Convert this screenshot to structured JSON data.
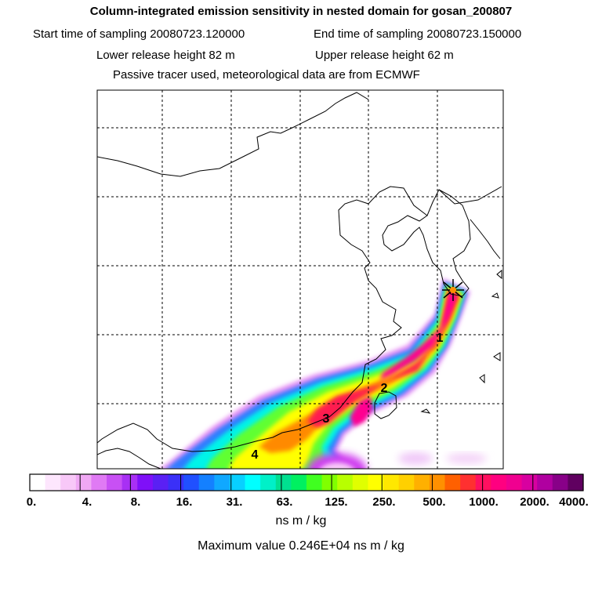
{
  "header": {
    "title": "Column-integrated emission sensitivity in nested domain for gosan_200807",
    "start_label": "Start time of sampling 20080723.120000",
    "end_label": "End time of sampling 20080723.150000",
    "lower_label": "Lower release height   82 m",
    "upper_label": "Upper release height   62 m",
    "tracer_note": "Passive tracer used, meteorological data are from ECMWF"
  },
  "chart_data": {
    "type": "heatmap",
    "title": "Column-integrated emission sensitivity in nested domain for gosan_200807",
    "colorbar": {
      "ticks": [
        "0.",
        "4.",
        "8.",
        "16.",
        "31.",
        "63.",
        "125.",
        "250.",
        "500.",
        "1000.",
        "2000.",
        "4000."
      ],
      "units": "ns m / kg",
      "scale": "logarithmic"
    },
    "maximum_text": "Maximum value  0.246E+04 ns m / kg",
    "maximum_value": 2460,
    "day_markers": [
      "1",
      "2",
      "3",
      "4"
    ],
    "receptor": "gosan",
    "grid": true
  },
  "colors": {
    "legend": [
      "#ffffff",
      "#fde6fd",
      "#f8c8f8",
      "#f0a8f4",
      "#e07af4",
      "#c850f4",
      "#a830f4",
      "#7f10f8",
      "#5a20f4",
      "#3a30f8",
      "#2050ff",
      "#1480ff",
      "#10a8ff",
      "#08d0ff",
      "#00ffff",
      "#00f0c8",
      "#00e090",
      "#00f060",
      "#40ff20",
      "#80ff00",
      "#b8ff00",
      "#e0ff00",
      "#ffff00",
      "#ffe800",
      "#ffd000",
      "#ffb000",
      "#ff9000",
      "#ff6000",
      "#ff3030",
      "#ff1060",
      "#ff0080",
      "#f00090",
      "#d800a0",
      "#b000a0",
      "#880088",
      "#600060"
    ]
  }
}
